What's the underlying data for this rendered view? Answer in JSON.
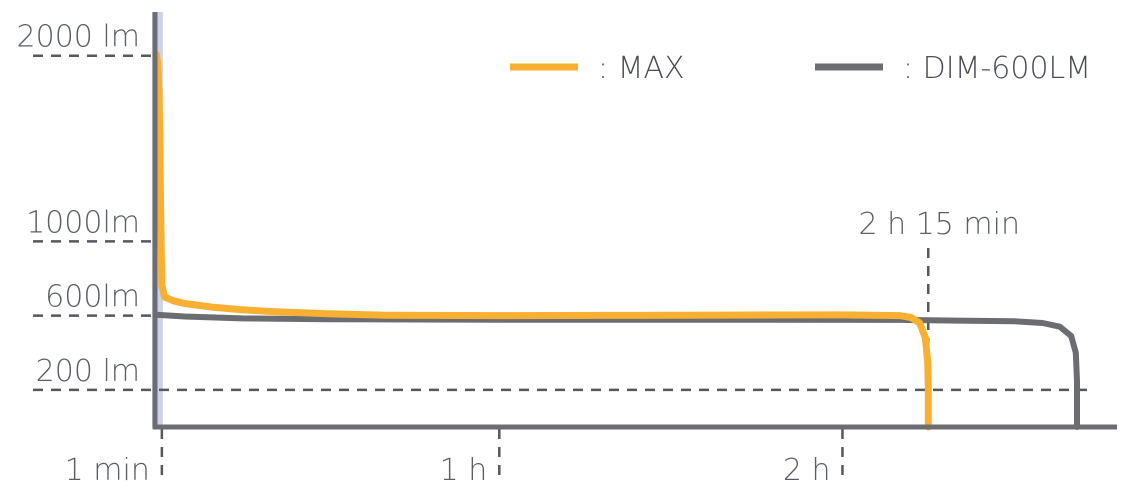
{
  "chart_data": {
    "type": "line",
    "x_unit": "min",
    "y_unit": "lm",
    "x_ticks": [
      {
        "value": 1,
        "label": "1 min"
      },
      {
        "value": 60,
        "label": "1 h"
      },
      {
        "value": 120,
        "label": "2 h"
      }
    ],
    "y_ticks": [
      {
        "value": 2000,
        "label": "2000 lm"
      },
      {
        "value": 1000,
        "label": "1000lm"
      },
      {
        "value": 600,
        "label": "600lm"
      },
      {
        "value": 200,
        "label": "200 lm"
      }
    ],
    "annotation": {
      "x": 135,
      "label": "2 h 15 min"
    },
    "highlight_band": {
      "x": [
        0,
        1
      ],
      "color": "#cdd3e4"
    },
    "xlim": [
      -0.2,
      168
    ],
    "ylim": [
      0,
      2300
    ],
    "series": [
      {
        "name": ": MAX",
        "color": "#f7b032",
        "points": [
          [
            0,
            2010
          ],
          [
            0.3,
            1950
          ],
          [
            0.5,
            1800
          ],
          [
            0.65,
            1500
          ],
          [
            0.8,
            1150
          ],
          [
            0.92,
            900
          ],
          [
            1,
            760
          ],
          [
            1.5,
            700
          ],
          [
            3,
            680
          ],
          [
            5,
            665
          ],
          [
            10,
            645
          ],
          [
            15,
            632
          ],
          [
            20,
            622
          ],
          [
            30,
            610
          ],
          [
            40,
            602
          ],
          [
            60,
            600
          ],
          [
            80,
            601
          ],
          [
            100,
            603
          ],
          [
            120,
            604
          ],
          [
            130,
            600
          ],
          [
            132,
            590
          ],
          [
            133.5,
            560
          ],
          [
            134.5,
            480
          ],
          [
            134.9,
            350
          ],
          [
            135,
            210
          ],
          [
            135,
            0
          ]
        ]
      },
      {
        "name": ": DIM-600LM",
        "color": "#6b6d72",
        "points": [
          [
            0,
            605
          ],
          [
            5,
            595
          ],
          [
            15,
            585
          ],
          [
            30,
            580
          ],
          [
            60,
            578
          ],
          [
            100,
            578
          ],
          [
            130,
            577
          ],
          [
            140,
            573
          ],
          [
            150,
            570
          ],
          [
            155,
            560
          ],
          [
            158,
            540
          ],
          [
            160,
            490
          ],
          [
            160.8,
            400
          ],
          [
            161,
            250
          ],
          [
            161,
            0
          ]
        ]
      }
    ]
  }
}
